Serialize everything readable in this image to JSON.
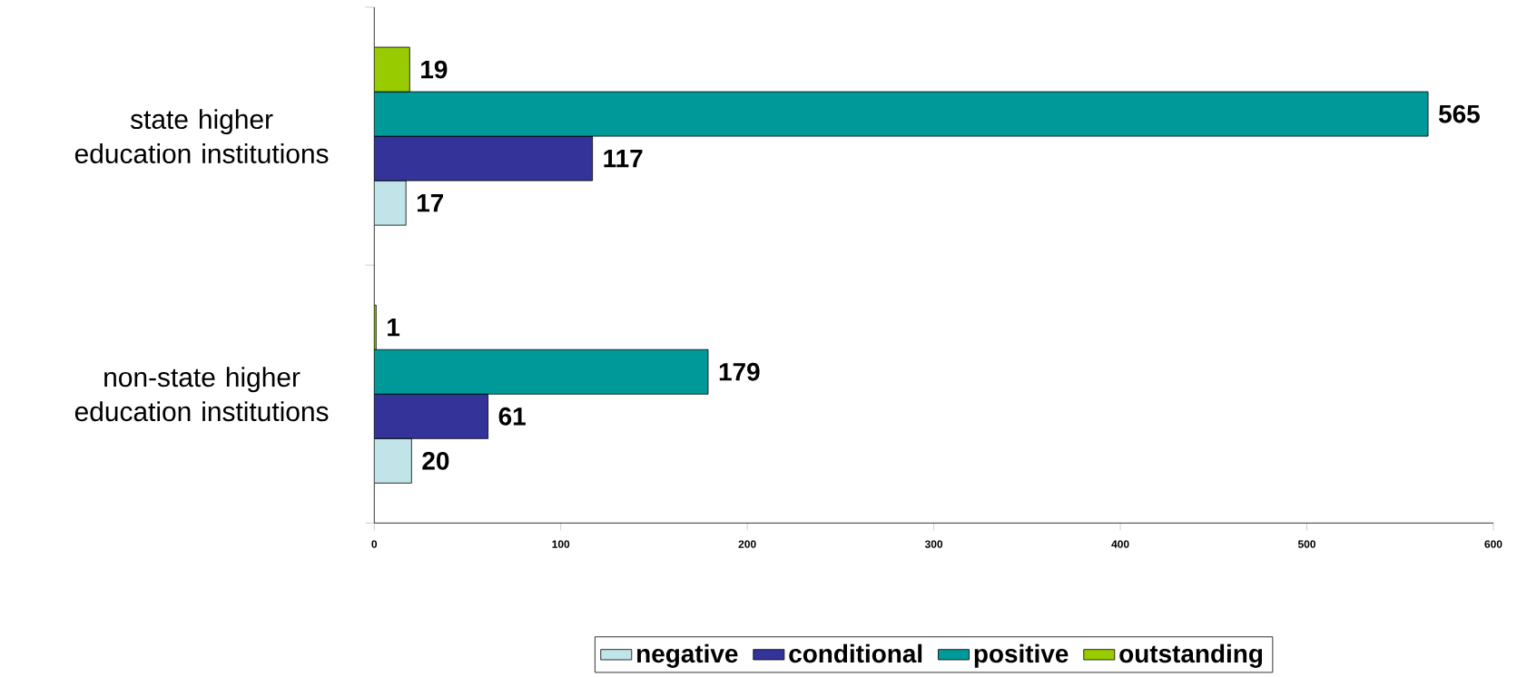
{
  "chart_data": {
    "type": "bar",
    "orientation": "horizontal",
    "categories": [
      "state higher education institutions",
      "non-state higher education institutions"
    ],
    "series": [
      {
        "name": "negative",
        "color": "#c0e4e8",
        "values": [
          17,
          20
        ]
      },
      {
        "name": "conditional",
        "color": "#333399",
        "values": [
          117,
          61
        ]
      },
      {
        "name": "positive",
        "color": "#009999",
        "values": [
          565,
          179
        ]
      },
      {
        "name": "outstanding",
        "color": "#99cc00",
        "values": [
          19,
          1
        ]
      }
    ],
    "xlim": [
      0,
      600
    ],
    "xticks": [
      0,
      100,
      200,
      300,
      400,
      500,
      600
    ],
    "data_labels": true,
    "legend": "bottom",
    "grid": false
  }
}
